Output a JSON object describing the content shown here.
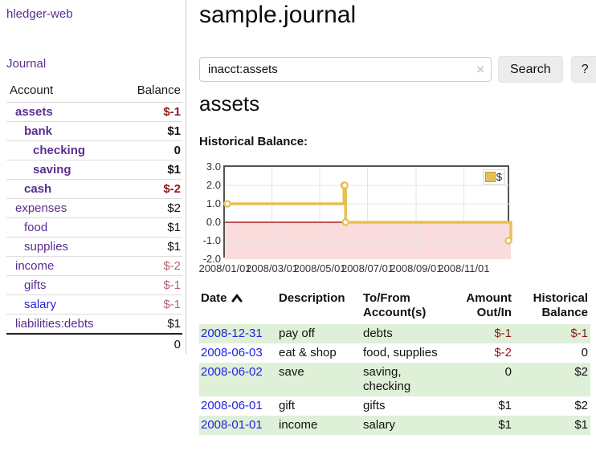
{
  "brand": {
    "label": "hledger-web"
  },
  "nav": {
    "journal": "Journal"
  },
  "sidebar": {
    "account_col": "Account",
    "balance_col": "Balance",
    "accounts": [
      {
        "name": "assets",
        "balance": "$-1"
      },
      {
        "name": "bank",
        "balance": "$1"
      },
      {
        "name": "checking",
        "balance": "0"
      },
      {
        "name": "saving",
        "balance": "$1"
      },
      {
        "name": "cash",
        "balance": "$-2"
      },
      {
        "name": "expenses",
        "balance": "$2"
      },
      {
        "name": "food",
        "balance": "$1"
      },
      {
        "name": "supplies",
        "balance": "$1"
      },
      {
        "name": "income",
        "balance": "$-2"
      },
      {
        "name": "gifts",
        "balance": "$-1"
      },
      {
        "name": "salary",
        "balance": "$-1"
      },
      {
        "name": "liabilities:debts",
        "balance": "$1"
      }
    ],
    "total": "0"
  },
  "main": {
    "title": "sample.journal",
    "search": {
      "value": "inacct:assets",
      "clear": "×",
      "button": "Search",
      "help": "?"
    },
    "account_title": "assets",
    "chart_heading": "Historical Balance:"
  },
  "chart_data": {
    "type": "line",
    "style": "step",
    "title": "Historical Balance",
    "series": [
      {
        "name": "$",
        "points": [
          [
            "2008-01-01",
            1
          ],
          [
            "2008-06-01",
            2
          ],
          [
            "2008-06-02",
            2
          ],
          [
            "2008-06-03",
            0
          ],
          [
            "2008-12-31",
            -1
          ]
        ]
      }
    ],
    "xlim": [
      "2008-01-01",
      "2008-12-31"
    ],
    "ylim": [
      -2,
      3
    ],
    "yticks": [
      "3.0",
      "2.0",
      "1.0",
      "0.0",
      "-1.0",
      "-2.0"
    ],
    "xticks": [
      {
        "date": "2008-01-01",
        "label": "2008/01/01"
      },
      {
        "date": "2008-03-01",
        "label": "2008/03/01"
      },
      {
        "date": "2008-05-01",
        "label": "2008/05/01"
      },
      {
        "date": "2008-07-01",
        "label": "2008/07/01"
      },
      {
        "date": "2008-09-01",
        "label": "2008/09/01"
      },
      {
        "date": "2008-11-01",
        "label": "2008/11/01"
      }
    ],
    "grid": true,
    "legend_position": "top-right",
    "colors": {
      "line": "#e6c054",
      "negative_region": "#fadcdc",
      "zero_line": "#aa2222"
    }
  },
  "register": {
    "headers": {
      "date": "Date",
      "description": "Description",
      "tofrom": "To/From Account(s)",
      "amount": "Amount Out/In",
      "balance": "Historical Balance"
    },
    "rows": [
      {
        "date": "2008-12-31",
        "description": "pay off",
        "accounts": "debts",
        "amount": "$-1",
        "balance": "$-1"
      },
      {
        "date": "2008-06-03",
        "description": "eat & shop",
        "accounts": "food, supplies",
        "amount": "$-2",
        "balance": "0"
      },
      {
        "date": "2008-06-02",
        "description": "save",
        "accounts": "saving, checking",
        "amount": "0",
        "balance": "$2"
      },
      {
        "date": "2008-06-01",
        "description": "gift",
        "accounts": "gifts",
        "amount": "$1",
        "balance": "$2"
      },
      {
        "date": "2008-01-01",
        "description": "income",
        "accounts": "salary",
        "amount": "$1",
        "balance": "$1"
      }
    ]
  }
}
